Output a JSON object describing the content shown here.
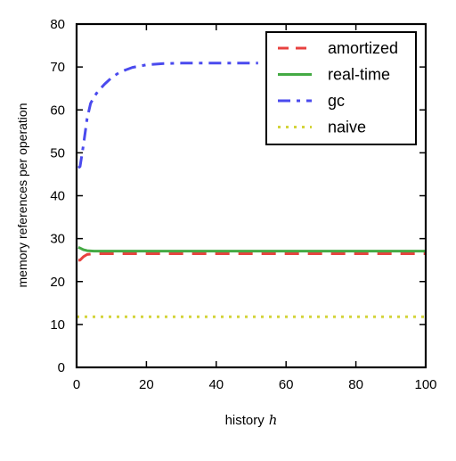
{
  "chart_data": {
    "type": "line",
    "title": "",
    "xlabel": "history",
    "xlabel_symbol": "h",
    "ylabel": "memory references per operation",
    "xlim": [
      0,
      100
    ],
    "ylim": [
      0,
      80
    ],
    "xticks": [
      "0",
      "20",
      "40",
      "60",
      "80",
      "100"
    ],
    "yticks": [
      "0",
      "10",
      "20",
      "30",
      "40",
      "50",
      "60",
      "70",
      "80"
    ],
    "grid": false,
    "legend_position": "top-right",
    "series": [
      {
        "name": "amortized",
        "color": "#e8423f",
        "style": "dashed",
        "x": [
          0.5,
          1,
          2,
          3,
          5,
          10,
          20,
          40,
          60,
          80,
          100
        ],
        "y": [
          25,
          25,
          25.8,
          26.3,
          26.5,
          26.5,
          26.5,
          26.5,
          26.5,
          26.5,
          26.5
        ]
      },
      {
        "name": "real-time",
        "color": "#44aa44",
        "style": "solid",
        "x": [
          0.5,
          1,
          2,
          3,
          5,
          10,
          20,
          40,
          60,
          80,
          100
        ],
        "y": [
          28,
          27.8,
          27.4,
          27.2,
          27.1,
          27.1,
          27.1,
          27.1,
          27.1,
          27.1,
          27.1
        ]
      },
      {
        "name": "gc",
        "color": "#4a4aee",
        "style": "dashdot",
        "x": [
          0.5,
          1,
          2,
          3,
          4,
          5,
          6,
          8,
          10,
          12,
          14,
          16,
          20,
          25,
          30,
          40,
          50,
          52
        ],
        "y": [
          46.5,
          46.8,
          52,
          58,
          61.5,
          63,
          64.2,
          66,
          67.5,
          68.6,
          69.3,
          69.9,
          70.5,
          70.8,
          70.9,
          70.9,
          70.9,
          70.9
        ]
      },
      {
        "name": "naive",
        "color": "#d4d43a",
        "style": "dotted",
        "x": [
          0,
          100
        ],
        "y": [
          11.8,
          11.8
        ]
      }
    ]
  }
}
